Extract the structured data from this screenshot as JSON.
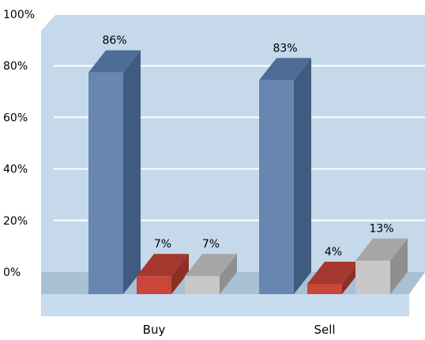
{
  "chart_data": {
    "type": "bar",
    "categories": [
      "Buy",
      "Sell"
    ],
    "series": [
      {
        "values": [
          86,
          83
        ],
        "data_labels": [
          "86%",
          "83%"
        ]
      },
      {
        "values": [
          7,
          4
        ],
        "data_labels": [
          "7%",
          "4%"
        ]
      },
      {
        "values": [
          7,
          13
        ],
        "data_labels": [
          "7%",
          "13%"
        ]
      }
    ],
    "y_ticks": [
      "0%",
      "20%",
      "40%",
      "60%",
      "80%",
      "100%"
    ],
    "ylim": [
      0,
      100
    ],
    "grid": true,
    "legend": "none",
    "title": "",
    "xlabel": "",
    "ylabel": ""
  },
  "colors": {
    "plot_background": "#c5d9ea",
    "gridline": "#ffffff",
    "floor": "#a9c0d5",
    "floor_front": "#c7dcee",
    "series": [
      {
        "front": "#6787b0",
        "top": "#4d6d96",
        "side": "#3f5c80"
      },
      {
        "front": "#c9473a",
        "top": "#a4382e",
        "side": "#8e2f25"
      },
      {
        "front": "#c8c8c8",
        "top": "#a6a6a6",
        "side": "#8f8f8f"
      }
    ]
  }
}
